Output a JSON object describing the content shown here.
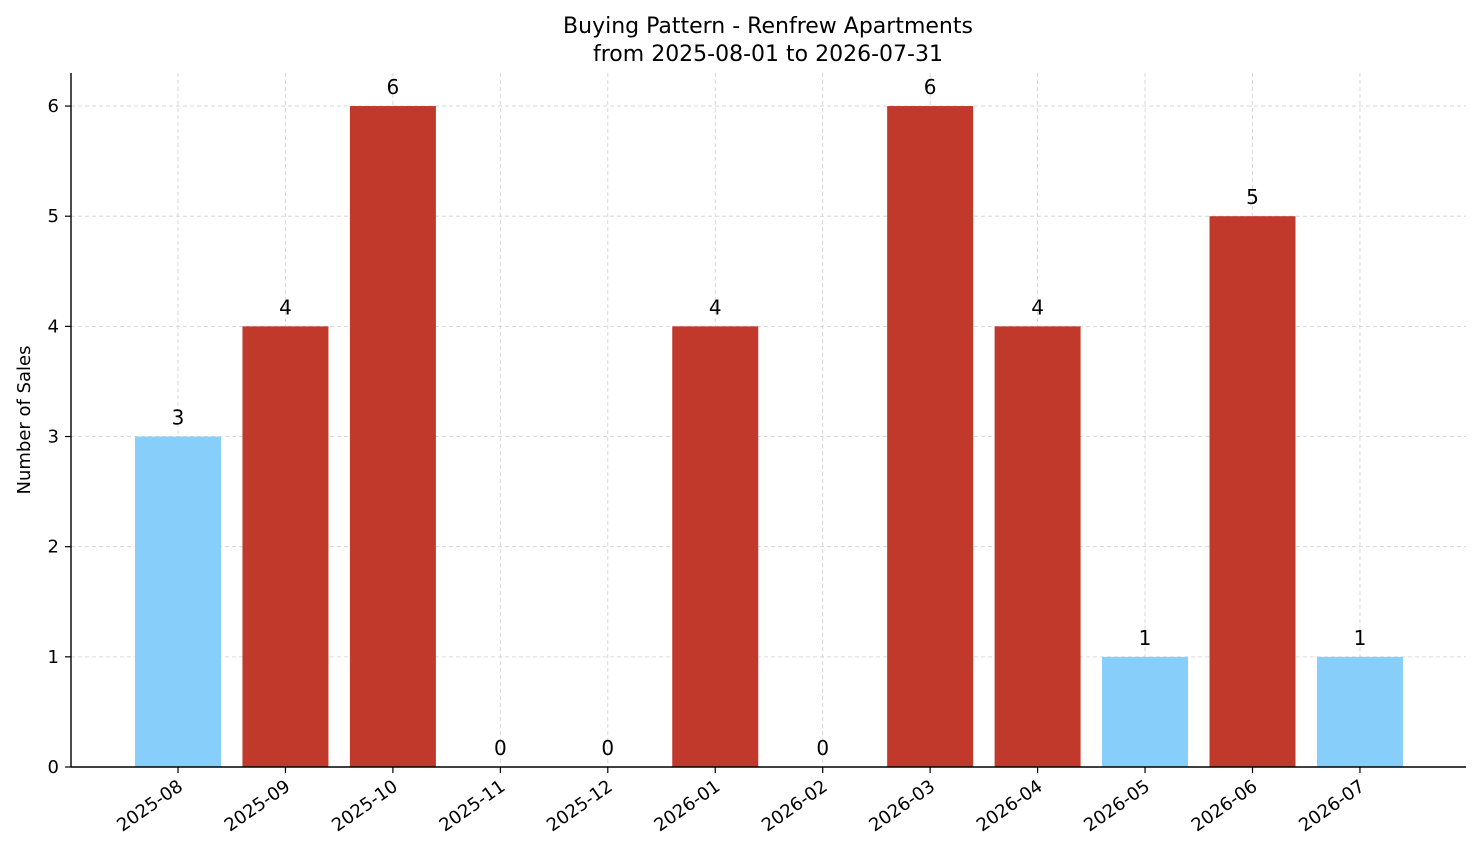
{
  "chart_data": {
    "type": "bar",
    "title_line1": "Buying Pattern - Renfrew Apartments",
    "title_line2": "from 2025-08-01 to 2026-07-31",
    "xlabel": "",
    "ylabel": "Number of Sales",
    "categories": [
      "2025-08",
      "2025-09",
      "2025-10",
      "2025-11",
      "2025-12",
      "2026-01",
      "2026-02",
      "2026-03",
      "2026-04",
      "2026-05",
      "2026-06",
      "2026-07"
    ],
    "values": [
      3,
      4,
      6,
      0,
      0,
      4,
      0,
      6,
      4,
      1,
      5,
      1
    ],
    "ylim": [
      0,
      6.3
    ],
    "yticks": [
      0,
      1,
      2,
      3,
      4,
      5,
      6
    ],
    "grid": true,
    "colors": {
      "high": "#c0392b",
      "low": "#87cefa",
      "threshold": 4
    }
  }
}
